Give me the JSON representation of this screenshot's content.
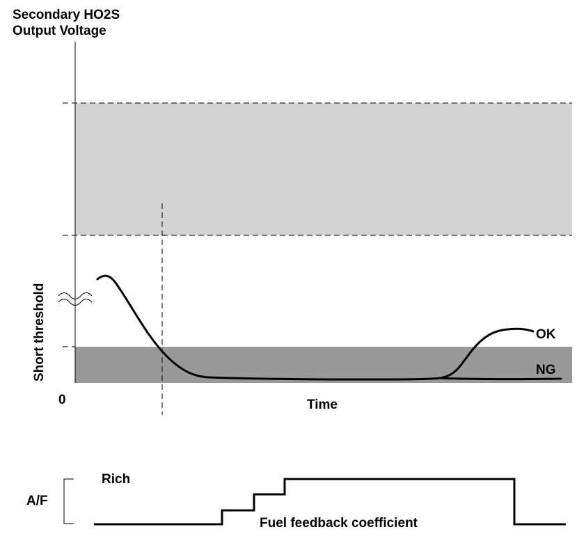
{
  "upper_chart": {
    "title_line1": "Secondary HO2S",
    "title_line2": "Output Voltage",
    "y_label": "Short threshold",
    "origin_label": "0",
    "x_label": "Time",
    "ok_label": "OK",
    "ng_label": "NG",
    "upper_band_color": "#d3d3d3",
    "lower_band_color": "#999999"
  },
  "lower_chart": {
    "y_label": "A/F",
    "rich_label": "Rich",
    "signal_label": "Fuel feedback coefficient"
  }
}
